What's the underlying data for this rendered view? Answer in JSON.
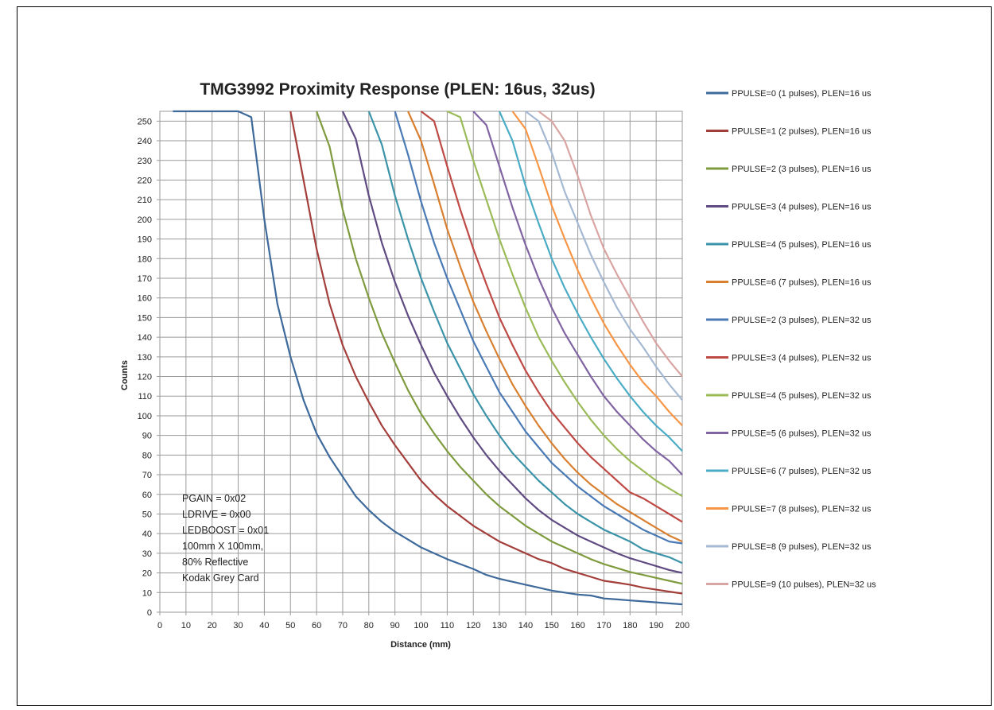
{
  "chart_data": {
    "type": "line",
    "title": "TMG3992 Proximity Response (PLEN: 16us, 32us)",
    "xlabel": "Distance (mm)",
    "ylabel": "Counts",
    "xlim": [
      0,
      200
    ],
    "ylim": [
      0,
      255
    ],
    "xticks": [
      0,
      10,
      20,
      30,
      40,
      50,
      60,
      70,
      80,
      90,
      100,
      110,
      120,
      130,
      140,
      150,
      160,
      170,
      180,
      190,
      200
    ],
    "yticks": [
      0,
      10,
      20,
      30,
      40,
      50,
      60,
      70,
      80,
      90,
      100,
      110,
      120,
      130,
      140,
      150,
      160,
      170,
      180,
      190,
      200,
      210,
      220,
      230,
      240,
      250
    ],
    "grid": true,
    "legend_position": "right",
    "annotation": [
      "PGAIN = 0x02",
      "LDRIVE = 0x00",
      "LEDBOOST = 0x01",
      "100mm X 100mm,",
      "80% Reflective",
      "Kodak Grey Card"
    ],
    "series": [
      {
        "name": "PPULSE=0 (1 pulses), PLEN=16 us",
        "color": "#3e6a9b",
        "x": [
          5,
          30,
          35,
          40,
          45,
          50,
          55,
          60,
          65,
          70,
          75,
          80,
          85,
          90,
          95,
          100,
          105,
          110,
          115,
          120,
          125,
          130,
          135,
          140,
          145,
          150,
          155,
          160,
          165,
          170,
          175,
          180,
          185,
          190,
          195,
          200
        ],
        "y": [
          255,
          255,
          252,
          200,
          157,
          130,
          108,
          91,
          79,
          69,
          59,
          52,
          46,
          41,
          37,
          33,
          30,
          27,
          24.5,
          22,
          19,
          17,
          15.5,
          14,
          12.5,
          11,
          10,
          9,
          8.5,
          7,
          6.5,
          6,
          5.5,
          5,
          4.5,
          4
        ]
      },
      {
        "name": "PPULSE=1 (2 pulses), PLEN=16 us",
        "color": "#a33e3b",
        "x": [
          50,
          55,
          60,
          65,
          70,
          75,
          80,
          85,
          90,
          95,
          100,
          105,
          110,
          115,
          120,
          125,
          130,
          135,
          140,
          145,
          150,
          155,
          160,
          165,
          170,
          175,
          180,
          185,
          190,
          195,
          200
        ],
        "y": [
          255,
          220,
          185,
          157,
          136,
          120,
          107,
          95,
          85,
          76,
          67,
          60,
          54,
          49,
          44,
          40,
          36,
          33,
          30,
          27,
          25,
          22,
          20,
          18,
          16,
          15,
          14,
          12.5,
          11.5,
          10.5,
          9.5
        ]
      },
      {
        "name": "PPULSE=2 (3 pulses), PLEN=16 us",
        "color": "#7e9b3e",
        "x": [
          60,
          65,
          70,
          75,
          80,
          85,
          90,
          95,
          100,
          105,
          110,
          115,
          120,
          125,
          130,
          135,
          140,
          145,
          150,
          155,
          160,
          165,
          170,
          175,
          180,
          185,
          190,
          195,
          200
        ],
        "y": [
          255,
          237,
          205,
          180,
          160,
          142,
          127,
          113,
          101,
          91,
          82,
          74,
          67,
          60,
          54,
          49,
          44,
          40,
          36,
          33,
          30,
          27,
          24.5,
          22.5,
          20.5,
          19,
          17.5,
          16,
          14.5
        ]
      },
      {
        "name": "PPULSE=3 (4 pulses), PLEN=16 us",
        "color": "#5f4a82",
        "x": [
          70,
          75,
          80,
          85,
          90,
          95,
          100,
          105,
          110,
          115,
          120,
          125,
          130,
          135,
          140,
          145,
          150,
          155,
          160,
          165,
          170,
          175,
          180,
          185,
          190,
          195,
          200
        ],
        "y": [
          255,
          241,
          212,
          188,
          168,
          151,
          136,
          122,
          110,
          99,
          89,
          80,
          72,
          65,
          58,
          52,
          47,
          43,
          39,
          36,
          33,
          30,
          27.5,
          25.5,
          23.5,
          21.5,
          20
        ]
      },
      {
        "name": "PPULSE=4 (5 pulses), PLEN=16 us",
        "color": "#3a93a8",
        "x": [
          80,
          85,
          90,
          95,
          100,
          105,
          110,
          115,
          120,
          125,
          130,
          135,
          140,
          145,
          150,
          155,
          160,
          165,
          170,
          175,
          180,
          185,
          190,
          195,
          200
        ],
        "y": [
          255,
          238,
          212,
          190,
          170,
          153,
          137,
          124,
          111,
          100,
          90,
          81,
          74,
          67,
          61,
          55,
          50,
          46,
          42,
          39,
          36,
          32,
          30,
          28,
          25
        ]
      },
      {
        "name": "PPULSE=6 (7 pulses), PLEN=16 us",
        "color": "#d97f30",
        "x": [
          95,
          100,
          105,
          110,
          115,
          120,
          125,
          130,
          135,
          140,
          145,
          150,
          155,
          160,
          165,
          170,
          175,
          180,
          185,
          190,
          195,
          200
        ],
        "y": [
          255,
          240,
          218,
          195,
          176,
          158,
          143,
          129,
          116,
          105,
          95,
          86,
          78,
          71,
          65,
          60,
          55,
          51,
          47,
          43,
          39,
          36
        ]
      },
      {
        "name": "PPULSE=2 (3 pulses), PLEN=32 us",
        "color": "#4a7ab5",
        "x": [
          90,
          95,
          100,
          105,
          110,
          115,
          120,
          125,
          130,
          135,
          140,
          145,
          150,
          155,
          160,
          165,
          170,
          175,
          180,
          185,
          190,
          195,
          200
        ],
        "y": [
          255,
          233,
          209,
          188,
          170,
          154,
          138,
          125,
          112,
          102,
          92,
          84,
          76,
          70,
          64,
          59,
          54,
          50,
          46,
          42,
          39,
          36,
          35
        ]
      },
      {
        "name": "PPULSE=3 (4 pulses), PLEN=32 us",
        "color": "#bf4a45",
        "x": [
          100,
          105,
          110,
          115,
          120,
          125,
          130,
          135,
          140,
          145,
          150,
          155,
          160,
          165,
          170,
          175,
          180,
          185,
          190,
          195,
          200
        ],
        "y": [
          255,
          250,
          227,
          205,
          185,
          167,
          150,
          136,
          123,
          112,
          102,
          94,
          86,
          79,
          73,
          67,
          61,
          58,
          54,
          50,
          46
        ]
      },
      {
        "name": "PPULSE=4 (5 pulses), PLEN=32 us",
        "color": "#9bbb59",
        "x": [
          110,
          115,
          120,
          125,
          130,
          135,
          140,
          145,
          150,
          155,
          160,
          165,
          170,
          175,
          180,
          185,
          190,
          195,
          200
        ],
        "y": [
          255,
          252,
          230,
          210,
          190,
          172,
          155,
          140,
          128,
          117,
          107,
          98,
          90,
          83,
          77,
          72,
          67,
          63,
          59
        ]
      },
      {
        "name": "PPULSE=5 (6 pulses), PLEN=32 us",
        "color": "#8064a2",
        "x": [
          120,
          125,
          130,
          135,
          140,
          145,
          150,
          155,
          160,
          165,
          170,
          175,
          180,
          185,
          190,
          195,
          200
        ],
        "y": [
          255,
          248,
          227,
          206,
          187,
          170,
          155,
          142,
          131,
          120,
          110,
          102,
          95,
          88,
          82,
          77,
          70
        ]
      },
      {
        "name": "PPULSE=6 (7 pulses), PLEN=32 us",
        "color": "#4bacc6",
        "x": [
          130,
          135,
          140,
          145,
          150,
          155,
          160,
          165,
          170,
          175,
          180,
          185,
          190,
          195,
          200
        ],
        "y": [
          255,
          240,
          217,
          198,
          180,
          165,
          152,
          140,
          129,
          119,
          110,
          102,
          95,
          89,
          82
        ]
      },
      {
        "name": "PPULSE=7 (8 pulses), PLEN=32 us",
        "color": "#f79646",
        "x": [
          135,
          140,
          145,
          150,
          155,
          160,
          165,
          170,
          175,
          180,
          185,
          190,
          195,
          200
        ],
        "y": [
          255,
          246,
          227,
          207,
          190,
          174,
          160,
          147,
          136,
          126,
          117,
          110,
          102,
          95
        ]
      },
      {
        "name": "PPULSE=8 (9 pulses), PLEN=32 us",
        "color": "#a5b9d3",
        "x": [
          140,
          145,
          150,
          155,
          160,
          165,
          170,
          175,
          180,
          185,
          190,
          195,
          200
        ],
        "y": [
          255,
          250,
          234,
          214,
          198,
          182,
          168,
          155,
          144,
          135,
          125,
          116,
          108
        ]
      },
      {
        "name": "PPULSE=9 (10 pulses), PLEN=32 us",
        "color": "#d9a5a3",
        "x": [
          145,
          150,
          155,
          160,
          165,
          170,
          175,
          180,
          185,
          190,
          195,
          200
        ],
        "y": [
          255,
          250,
          240,
          222,
          202,
          185,
          172,
          160,
          148,
          137,
          128,
          120
        ]
      }
    ]
  }
}
